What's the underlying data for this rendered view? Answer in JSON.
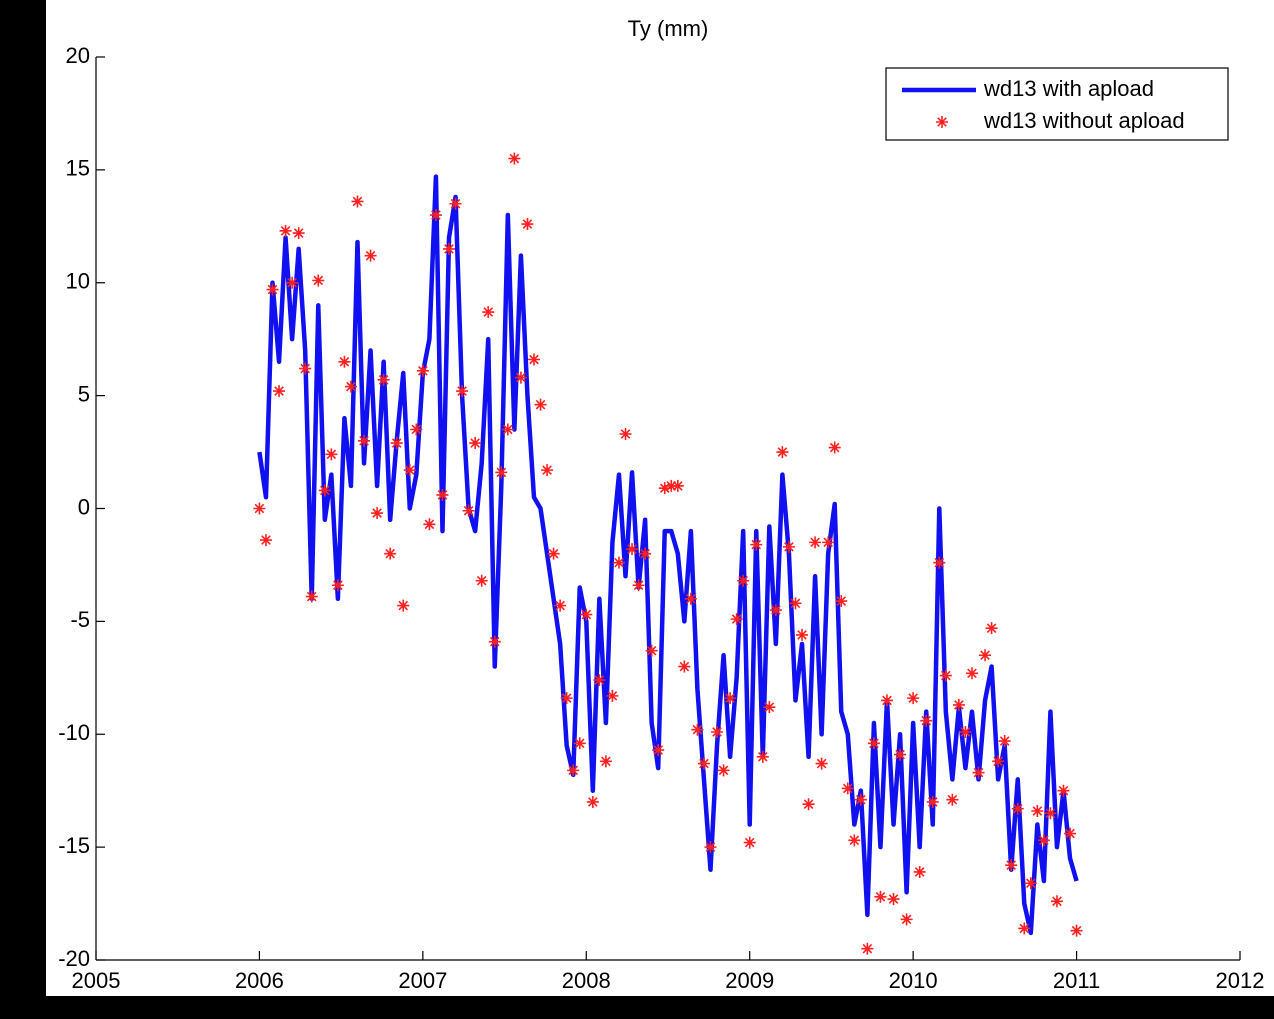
{
  "chart_data": {
    "type": "line",
    "title": "Ty (mm)",
    "x": [
      2006.0,
      2006.04,
      2006.08,
      2006.12,
      2006.16,
      2006.2,
      2006.24,
      2006.28,
      2006.32,
      2006.36,
      2006.4,
      2006.44,
      2006.48,
      2006.52,
      2006.56,
      2006.6,
      2006.64,
      2006.68,
      2006.72,
      2006.76,
      2006.8,
      2006.84,
      2006.88,
      2006.92,
      2006.96,
      2007.0,
      2007.04,
      2007.08,
      2007.12,
      2007.16,
      2007.2,
      2007.24,
      2007.28,
      2007.32,
      2007.36,
      2007.4,
      2007.44,
      2007.48,
      2007.52,
      2007.56,
      2007.6,
      2007.64,
      2007.68,
      2007.72,
      2007.76,
      2007.8,
      2007.84,
      2007.88,
      2007.92,
      2007.96,
      2008.0,
      2008.04,
      2008.08,
      2008.12,
      2008.16,
      2008.2,
      2008.24,
      2008.28,
      2008.32,
      2008.36,
      2008.4,
      2008.44,
      2008.48,
      2008.52,
      2008.56,
      2008.6,
      2008.64,
      2008.68,
      2008.72,
      2008.76,
      2008.8,
      2008.84,
      2008.88,
      2008.92,
      2008.96,
      2009.0,
      2009.04,
      2009.08,
      2009.12,
      2009.16,
      2009.2,
      2009.24,
      2009.28,
      2009.32,
      2009.36,
      2009.4,
      2009.44,
      2009.48,
      2009.52,
      2009.56,
      2009.6,
      2009.64,
      2009.68,
      2009.72,
      2009.76,
      2009.8,
      2009.84,
      2009.88,
      2009.92,
      2009.96,
      2010.0,
      2010.04,
      2010.08,
      2010.12,
      2010.16,
      2010.2,
      2010.24,
      2010.28,
      2010.32,
      2010.36,
      2010.4,
      2010.44,
      2010.48,
      2010.52,
      2010.56,
      2010.6,
      2010.64,
      2010.68,
      2010.72,
      2010.76,
      2010.8,
      2010.84,
      2010.88,
      2010.92,
      2010.96,
      2011.0
    ],
    "series": [
      {
        "name": "wd13 with apload",
        "color": "#1010f0",
        "style": "line",
        "values": [
          2.5,
          0.5,
          10,
          6.5,
          12,
          7.5,
          11.5,
          7,
          -4,
          9,
          -0.5,
          1.5,
          -4,
          4,
          1,
          11.8,
          2,
          7,
          1,
          6.5,
          -0.5,
          3,
          6,
          0,
          1.5,
          6,
          7.5,
          14.7,
          -1,
          12,
          13.8,
          5,
          0,
          -1,
          2,
          7.5,
          -7,
          1,
          13,
          3.5,
          11.2,
          5,
          0.5,
          0,
          -2,
          -4,
          -6,
          -10.5,
          -11.8,
          -3.5,
          -5,
          -12.5,
          -4,
          -9.5,
          -1.5,
          1.5,
          -3,
          1.6,
          -3.5,
          -0.5,
          -9.5,
          -11.5,
          -1,
          -1,
          -2,
          -5,
          -1,
          -8,
          -12,
          -16,
          -10.5,
          -6.5,
          -11,
          -7.5,
          -1,
          -14,
          -1,
          -11,
          -0.8,
          -6,
          1.5,
          -2,
          -8.5,
          -6,
          -11,
          -3,
          -10,
          -2,
          0.2,
          -9,
          -10,
          -14,
          -12.5,
          -18,
          -9.5,
          -15,
          -8.5,
          -14,
          -10,
          -17,
          -9.5,
          -15,
          -9,
          -14,
          0,
          -9,
          -12,
          -8.8,
          -11.5,
          -9,
          -12,
          -8.5,
          -7,
          -12,
          -10.5,
          -16,
          -12,
          -17.5,
          -18.8,
          -14,
          -16.5,
          -9,
          -15,
          -12.5,
          -15.5,
          -16.5
        ]
      },
      {
        "name": "wd13 without apload",
        "color": "#ff2020",
        "style": "marker",
        "values": [
          0,
          -1.4,
          9.7,
          5.2,
          12.3,
          10,
          12.2,
          6.2,
          -3.9,
          10.1,
          0.8,
          2.4,
          -3.4,
          6.5,
          5.4,
          13.6,
          3,
          11.2,
          -0.2,
          5.7,
          -2,
          2.9,
          -4.3,
          1.7,
          3.5,
          6.1,
          -0.7,
          13,
          0.6,
          11.5,
          13.5,
          5.2,
          -0.1,
          2.9,
          -3.2,
          8.7,
          -5.9,
          1.6,
          3.5,
          15.5,
          5.8,
          12.6,
          6.6,
          4.6,
          1.7,
          -2,
          -4.3,
          -8.4,
          -11.6,
          -10.4,
          -4.7,
          -13,
          -7.6,
          -11.2,
          -8.3,
          -2.4,
          3.3,
          -1.8,
          -3.4,
          -2,
          -6.3,
          -10.7,
          0.9,
          1,
          1,
          -7,
          -4,
          -9.8,
          -11.3,
          -15,
          -9.9,
          -11.6,
          -8.4,
          -4.9,
          -3.2,
          -14.8,
          -1.6,
          -11,
          -8.8,
          -4.5,
          2.5,
          -1.7,
          -4.2,
          -5.6,
          -13.1,
          -1.5,
          -11.3,
          -1.5,
          2.7,
          -4.1,
          -12.4,
          -14.7,
          -12.9,
          -19.5,
          -10.4,
          -17.2,
          -8.5,
          -17.3,
          -10.9,
          -18.2,
          -8.4,
          -16.1,
          -9.4,
          -13,
          -2.4,
          -7.4,
          -12.9,
          -8.7,
          -9.9,
          -7.3,
          -11.7,
          -6.5,
          -5.3,
          -11.2,
          -10.3,
          -15.8,
          -13.3,
          -18.6,
          -16.6,
          -13.4,
          -14.7,
          -13.5,
          -17.4,
          -12.5,
          -14.4,
          -18.7
        ]
      }
    ],
    "xlim": [
      2005,
      2012
    ],
    "xticks": [
      2005,
      2006,
      2007,
      2008,
      2009,
      2010,
      2011,
      2012
    ],
    "ylim": [
      -20,
      20
    ],
    "yticks": [
      -20,
      -15,
      -10,
      -5,
      0,
      5,
      10,
      15,
      20
    ],
    "grid": false,
    "legend": "northeast"
  }
}
